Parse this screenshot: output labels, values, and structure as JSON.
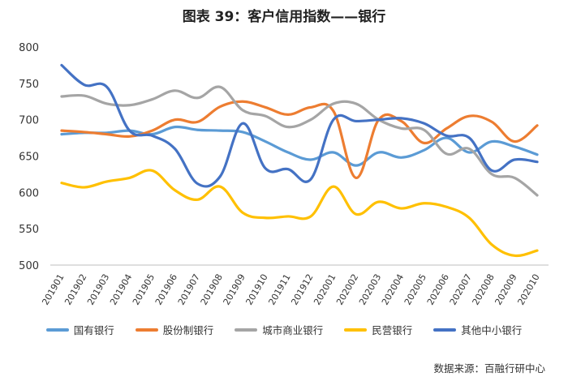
{
  "title": "图表 39：客户信用指数——银行",
  "source": "数据来源：百融行研中心",
  "chart_data": {
    "type": "line",
    "title": "图表 39：客户信用指数——银行",
    "xlabel": "",
    "ylabel": "",
    "ylim": [
      500,
      800
    ],
    "yticks": [
      500,
      550,
      600,
      650,
      700,
      750,
      800
    ],
    "grid": false,
    "legend_position": "bottom",
    "categories": [
      "201901",
      "201902",
      "201903",
      "201904",
      "201905",
      "201906",
      "201907",
      "201908",
      "201909",
      "201910",
      "201911",
      "201912",
      "202001",
      "202002",
      "202003",
      "202004",
      "202005",
      "202006",
      "202007",
      "202008",
      "202009",
      "202010"
    ],
    "series": [
      {
        "name": "国有银行",
        "color": "#5b9bd5",
        "values": [
          680,
          682,
          682,
          685,
          680,
          690,
          686,
          685,
          683,
          670,
          655,
          645,
          655,
          637,
          655,
          648,
          658,
          675,
          655,
          670,
          663,
          652
        ]
      },
      {
        "name": "股份制银行",
        "color": "#ed7d31",
        "values": [
          685,
          683,
          680,
          677,
          685,
          700,
          697,
          718,
          725,
          717,
          707,
          717,
          712,
          620,
          700,
          698,
          668,
          688,
          705,
          697,
          670,
          692
        ]
      },
      {
        "name": "城市商业银行",
        "color": "#a5a5a5",
        "values": [
          732,
          733,
          722,
          720,
          728,
          740,
          730,
          745,
          713,
          705,
          690,
          700,
          722,
          722,
          700,
          688,
          686,
          653,
          660,
          625,
          620,
          596
        ]
      },
      {
        "name": "民营银行",
        "color": "#ffc000",
        "values": [
          613,
          607,
          615,
          620,
          630,
          603,
          590,
          608,
          572,
          565,
          567,
          567,
          608,
          570,
          587,
          578,
          585,
          580,
          565,
          528,
          513,
          520
        ]
      },
      {
        "name": "其他中小银行",
        "color": "#4472c4",
        "values": [
          775,
          748,
          745,
          685,
          678,
          660,
          612,
          622,
          695,
          633,
          632,
          618,
          700,
          698,
          700,
          702,
          695,
          678,
          675,
          630,
          645,
          642
        ]
      }
    ]
  }
}
